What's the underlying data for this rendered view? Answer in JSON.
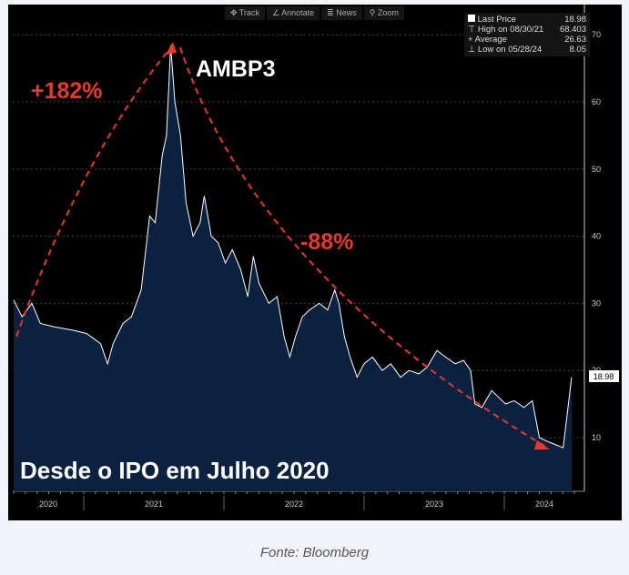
{
  "toolbar": {
    "track": "Track",
    "annotate": "Annotate",
    "news": "News",
    "zoom": "Zoom"
  },
  "legend": {
    "last_label": "Last Price",
    "last_value": "18.98",
    "high_label": "High on 08/30/21",
    "high_value": "68.403",
    "avg_label": "Average",
    "avg_value": "26.63",
    "low_label": "Low on 05/28/24",
    "low_value": "8.05"
  },
  "annotations": {
    "ticker": "AMBP3",
    "gain": "+182%",
    "loss": "-88%",
    "subtitle": "Desde o IPO em Julho 2020"
  },
  "caption": "Fonte: Bloomberg",
  "colors": {
    "area": "#0a2240",
    "line": "#ffffff",
    "arrow": "#e8392a",
    "background": "#000000"
  },
  "chart_data": {
    "type": "area",
    "title": "AMBP3",
    "xlabel": "",
    "ylabel": "",
    "ylim": [
      3,
      73
    ],
    "yticks": [
      10,
      20,
      30,
      40,
      50,
      60,
      70
    ],
    "xticks": [
      "2020",
      "2021",
      "2022",
      "2023",
      "2024"
    ],
    "last_price_label": "18.98",
    "x": [
      2020.5,
      2020.56,
      2020.63,
      2020.69,
      2020.79,
      2020.92,
      2021.02,
      2021.12,
      2021.17,
      2021.21,
      2021.28,
      2021.34,
      2021.41,
      2021.47,
      2021.51,
      2021.56,
      2021.59,
      2021.62,
      2021.65,
      2021.69,
      2021.73,
      2021.78,
      2021.83,
      2021.86,
      2021.91,
      2021.96,
      2022.01,
      2022.06,
      2022.12,
      2022.17,
      2022.21,
      2022.25,
      2022.32,
      2022.38,
      2022.43,
      2022.47,
      2022.51,
      2022.56,
      2022.61,
      2022.68,
      2022.74,
      2022.79,
      2022.82,
      2022.86,
      2022.9,
      2022.95,
      2023.0,
      2023.06,
      2023.13,
      2023.19,
      2023.26,
      2023.32,
      2023.39,
      2023.45,
      2023.52,
      2023.58,
      2023.65,
      2023.71,
      2023.76,
      2023.79,
      2023.84,
      2023.91,
      2023.96,
      2024.01,
      2024.07,
      2024.14,
      2024.2,
      2024.25,
      2024.3,
      2024.36,
      2024.42,
      2024.44,
      2024.48
    ],
    "values": [
      30.5,
      28,
      30,
      27,
      26.5,
      26,
      25.5,
      24,
      21,
      24,
      27,
      28,
      32,
      43,
      42,
      52,
      55,
      68.4,
      60,
      55,
      45,
      40,
      42,
      46,
      40,
      39,
      36,
      38,
      35,
      31,
      37,
      33,
      30,
      31,
      25,
      22,
      25,
      28,
      29,
      30,
      29,
      32,
      30,
      25,
      22,
      19,
      21,
      22,
      20,
      21,
      19,
      20,
      19.5,
      20.5,
      23,
      22,
      21,
      21.5,
      20,
      15,
      14.5,
      17,
      16,
      15,
      15.5,
      14.5,
      15.5,
      10,
      9.5,
      9,
      8.5,
      12,
      18.98
    ]
  }
}
